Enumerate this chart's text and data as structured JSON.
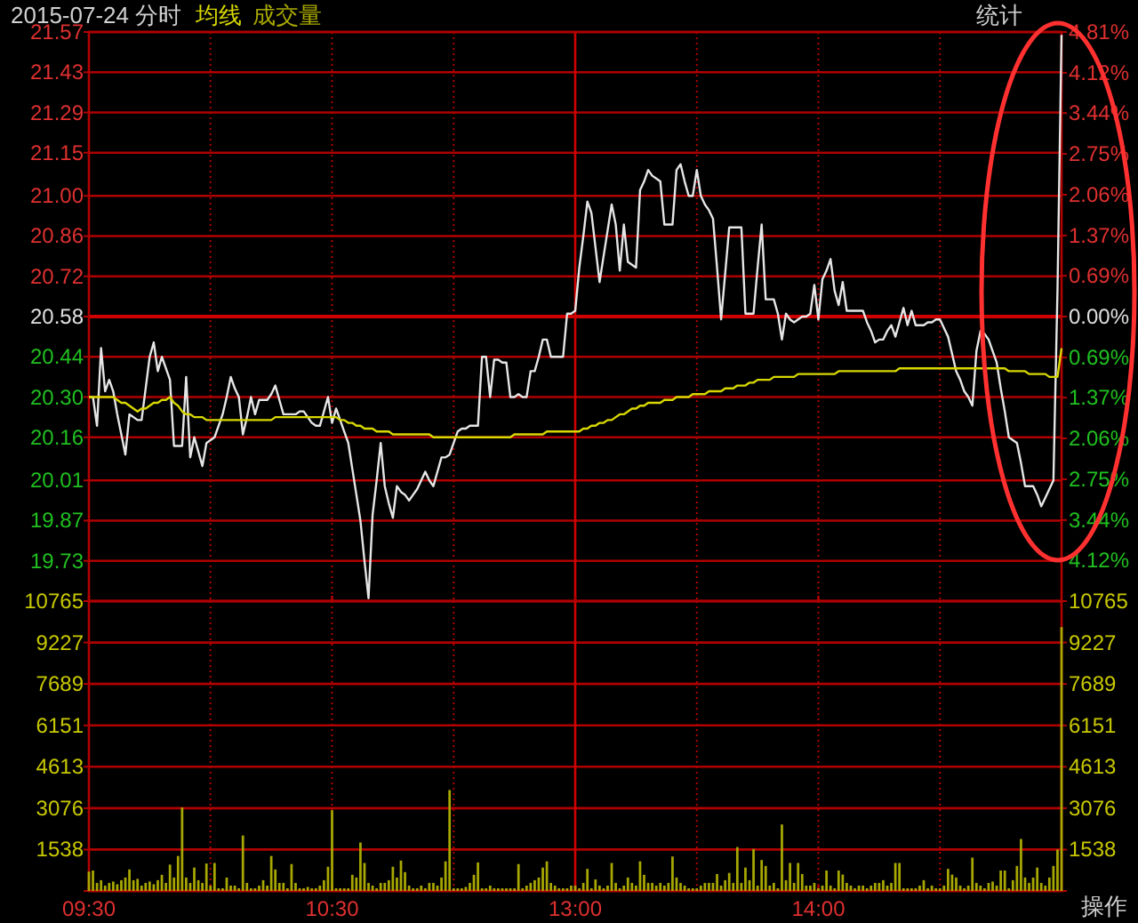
{
  "chart_data": [
    {
      "type": "line",
      "title": "2015-07-24 分时",
      "annotations": [
        "统计"
      ],
      "legend": "top left",
      "grid": true,
      "tick_labels": "y",
      "categories": [
        "09:30",
        null,
        null,
        null,
        null,
        null,
        null,
        null,
        null,
        null,
        null,
        null,
        null,
        null,
        null,
        null,
        null,
        null,
        null,
        null,
        null,
        null,
        null,
        null,
        null,
        null,
        null,
        null,
        null,
        null,
        null,
        null,
        null,
        null,
        null,
        null,
        null,
        null,
        null,
        null,
        null,
        null,
        null,
        null,
        null,
        null,
        null,
        null,
        null,
        null,
        null,
        null,
        null,
        null,
        null,
        null,
        null,
        null,
        null,
        null,
        "10:30",
        null,
        null,
        null,
        null,
        null,
        null,
        null,
        null,
        null,
        null,
        null,
        null,
        null,
        null,
        null,
        null,
        null,
        null,
        null,
        null,
        null,
        null,
        null,
        null,
        null,
        null,
        null,
        null,
        null,
        null,
        null,
        null,
        null,
        null,
        null,
        null,
        null,
        null,
        null,
        null,
        null,
        null,
        null,
        null,
        null,
        null,
        null,
        null,
        null,
        null,
        null,
        null,
        null,
        null,
        null,
        null,
        null,
        null,
        null,
        "13:00",
        null,
        null,
        null,
        null,
        null,
        null,
        null,
        null,
        null,
        null,
        null,
        null,
        null,
        null,
        null,
        null,
        null,
        null,
        null,
        null,
        null,
        null,
        null,
        null,
        null,
        null,
        null,
        null,
        null,
        null,
        null,
        null,
        null,
        null,
        null,
        null,
        null,
        null,
        null,
        null,
        null,
        null,
        null,
        null,
        null,
        null,
        null,
        null,
        null,
        null,
        null,
        null,
        null,
        null,
        null,
        null,
        null,
        null,
        null,
        "14:00",
        null,
        null,
        null,
        null,
        null,
        null,
        null,
        null,
        null,
        null,
        null,
        null,
        null,
        null,
        null,
        null,
        null,
        null,
        null,
        null,
        null,
        null,
        null,
        null,
        null,
        null,
        null,
        null,
        null,
        null,
        null,
        null,
        null,
        null,
        null,
        null,
        null,
        null,
        null,
        null,
        null,
        null,
        null,
        null,
        null,
        null,
        null,
        null,
        null,
        null,
        null,
        null,
        null,
        null,
        null,
        null,
        null,
        null,
        null,
        null
      ],
      "ylim": [
        19.59,
        21.57
      ],
      "yticks": [
        21.57,
        21.43,
        21.29,
        21.15,
        {
          "value": 21.0,
          "label": "21.00"
        },
        20.86,
        20.72,
        20.58,
        20.44,
        {
          "value": 20.3,
          "label": "20.30"
        },
        20.16,
        20.01,
        19.87,
        19.73
      ],
      "y2lim": [
        -4.81,
        4.81
      ],
      "y2ticks": [
        {
          "value": 4.81,
          "label": "4.81%"
        },
        {
          "value": 4.12,
          "label": "4.12%"
        },
        {
          "value": 3.44,
          "label": "3.44%"
        },
        {
          "value": 2.75,
          "label": "2.75%"
        },
        {
          "value": 2.06,
          "label": "2.06%"
        },
        {
          "value": 1.37,
          "label": "1.37%"
        },
        {
          "value": 0.69,
          "label": "0.69%"
        },
        {
          "value": 0,
          "label": "0.00%"
        },
        {
          "value": -0.69,
          "label": "0.69%"
        },
        {
          "value": -1.37,
          "label": "1.37%"
        },
        {
          "value": -2.06,
          "label": "2.06%"
        },
        {
          "value": -2.75,
          "label": "2.75%"
        },
        {
          "value": -3.44,
          "label": "3.44%"
        },
        {
          "value": -4.12,
          "label": "4.12%"
        }
      ],
      "ref_lines": [
        {
          "axis": "y",
          "value": 20.58
        },
        {
          "axis": "x",
          "value": "13:00"
        }
      ],
      "series": [
        {
          "color": "#e6e6e6",
          "values": [
            20.3,
            20.3,
            20.2,
            20.47,
            20.32,
            20.36,
            20.32,
            20.24,
            20.17,
            20.1,
            20.24,
            20.23,
            20.22,
            20.22,
            20.33,
            20.44,
            20.49,
            20.39,
            20.44,
            20.4,
            20.36,
            20.13,
            20.13,
            20.13,
            20.37,
            20.09,
            20.16,
            20.11,
            20.06,
            20.14,
            20.15,
            20.16,
            20.2,
            20.24,
            20.3,
            20.37,
            20.33,
            20.3,
            20.17,
            20.23,
            20.3,
            20.24,
            20.29,
            20.29,
            20.29,
            20.31,
            20.34,
            20.29,
            20.24,
            20.24,
            20.24,
            20.24,
            20.25,
            20.25,
            20.23,
            20.21,
            20.2,
            20.2,
            20.25,
            20.3,
            20.21,
            20.26,
            20.22,
            20.18,
            20.14,
            20.05,
            19.96,
            19.87,
            19.73,
            19.6,
            19.89,
            20.01,
            20.14,
            19.99,
            19.93,
            19.88,
            19.99,
            19.97,
            19.96,
            19.94,
            19.96,
            19.98,
            20.01,
            20.04,
            20.01,
            19.99,
            20.04,
            20.09,
            20.09,
            20.1,
            20.14,
            20.18,
            20.19,
            20.19,
            20.2,
            20.2,
            20.2,
            20.44,
            20.44,
            20.3,
            20.43,
            20.43,
            20.42,
            20.42,
            20.3,
            20.3,
            20.31,
            20.3,
            20.3,
            20.39,
            20.39,
            20.44,
            20.5,
            20.5,
            20.44,
            20.44,
            20.44,
            20.44,
            20.59,
            20.59,
            20.6,
            20.75,
            20.86,
            20.98,
            20.94,
            20.82,
            20.7,
            20.79,
            20.88,
            20.97,
            20.9,
            20.74,
            20.9,
            20.77,
            20.76,
            20.75,
            21.02,
            21.05,
            21.09,
            21.07,
            21.06,
            21.05,
            20.9,
            20.9,
            20.9,
            21.09,
            21.11,
            21.05,
            21.0,
            21.0,
            21.09,
            21.0,
            20.97,
            20.95,
            20.92,
            20.75,
            20.57,
            20.73,
            20.89,
            20.89,
            20.89,
            20.89,
            20.59,
            20.59,
            20.59,
            20.75,
            20.9,
            20.64,
            20.64,
            20.64,
            20.59,
            20.5,
            20.59,
            20.57,
            20.56,
            20.57,
            20.58,
            20.58,
            20.59,
            20.69,
            20.57,
            20.71,
            20.74,
            20.78,
            20.67,
            20.62,
            20.7,
            20.6,
            20.6,
            20.6,
            20.6,
            20.6,
            20.56,
            20.53,
            20.49,
            20.5,
            20.5,
            20.53,
            20.55,
            20.51,
            20.56,
            20.61,
            20.55,
            20.6,
            20.55,
            20.55,
            20.55,
            20.56,
            20.56,
            20.57,
            20.57,
            20.54,
            20.51,
            20.45,
            20.39,
            20.36,
            20.32,
            20.3,
            20.27,
            20.46,
            20.53,
            20.52,
            20.5,
            20.46,
            20.42,
            20.33,
            20.25,
            20.16,
            20.15,
            20.14,
            20.07,
            19.99,
            19.99,
            19.99,
            19.96,
            19.92,
            19.95,
            19.98,
            20.01,
            20.67,
            21.56
          ]
        },
        {
          "name": "均线",
          "color": "#d8d800",
          "values": [
            20.3,
            20.3,
            20.3,
            20.3,
            20.3,
            20.3,
            20.3,
            20.29,
            20.28,
            20.28,
            20.27,
            20.26,
            20.25,
            20.26,
            20.26,
            20.27,
            20.28,
            20.28,
            20.29,
            20.29,
            20.3,
            20.28,
            20.27,
            20.25,
            20.24,
            20.24,
            20.23,
            20.23,
            20.23,
            20.22,
            20.22,
            20.22,
            20.22,
            20.22,
            20.22,
            20.22,
            20.22,
            20.22,
            20.22,
            20.22,
            20.22,
            20.22,
            20.22,
            20.22,
            20.22,
            20.22,
            20.23,
            20.23,
            20.23,
            20.23,
            20.23,
            20.23,
            20.23,
            20.23,
            20.23,
            20.23,
            20.23,
            20.23,
            20.23,
            20.23,
            20.23,
            20.23,
            20.22,
            20.22,
            20.21,
            20.21,
            20.2,
            20.2,
            20.19,
            20.19,
            20.19,
            20.18,
            20.18,
            20.18,
            20.18,
            20.17,
            20.17,
            20.17,
            20.17,
            20.17,
            20.17,
            20.17,
            20.17,
            20.17,
            20.17,
            20.16,
            20.16,
            20.16,
            20.16,
            20.16,
            20.16,
            20.16,
            20.16,
            20.16,
            20.16,
            20.16,
            20.16,
            20.16,
            20.16,
            20.16,
            20.16,
            20.16,
            20.16,
            20.16,
            20.16,
            20.17,
            20.17,
            20.17,
            20.17,
            20.17,
            20.17,
            20.17,
            20.17,
            20.18,
            20.18,
            20.18,
            20.18,
            20.18,
            20.18,
            20.18,
            20.18,
            20.18,
            20.19,
            20.19,
            20.2,
            20.2,
            20.21,
            20.21,
            20.22,
            20.22,
            20.23,
            20.24,
            20.24,
            20.25,
            20.26,
            20.26,
            20.27,
            20.27,
            20.28,
            20.28,
            20.28,
            20.28,
            20.29,
            20.29,
            20.29,
            20.3,
            20.3,
            20.3,
            20.3,
            20.31,
            20.31,
            20.31,
            20.31,
            20.32,
            20.32,
            20.32,
            20.32,
            20.33,
            20.33,
            20.33,
            20.34,
            20.34,
            20.34,
            20.35,
            20.35,
            20.36,
            20.36,
            20.36,
            20.36,
            20.37,
            20.37,
            20.37,
            20.37,
            20.37,
            20.37,
            20.38,
            20.38,
            20.38,
            20.38,
            20.38,
            20.38,
            20.38,
            20.38,
            20.38,
            20.38,
            20.39,
            20.39,
            20.39,
            20.39,
            20.39,
            20.39,
            20.39,
            20.39,
            20.39,
            20.39,
            20.39,
            20.39,
            20.39,
            20.39,
            20.39,
            20.4,
            20.4,
            20.4,
            20.4,
            20.4,
            20.4,
            20.4,
            20.4,
            20.4,
            20.4,
            20.4,
            20.4,
            20.4,
            20.4,
            20.4,
            20.4,
            20.4,
            20.4,
            20.4,
            20.4,
            20.4,
            20.4,
            20.4,
            20.4,
            20.4,
            20.4,
            20.4,
            20.39,
            20.39,
            20.39,
            20.39,
            20.39,
            20.38,
            20.38,
            20.38,
            20.38,
            20.38,
            20.37,
            20.37,
            20.37,
            20.47
          ]
        }
      ]
    },
    {
      "type": "bar",
      "annotations": [
        "操作"
      ],
      "legend": "top left",
      "grid": true,
      "categories": [
        "09:30",
        null,
        null,
        null,
        null,
        null,
        null,
        null,
        null,
        null,
        null,
        null,
        null,
        null,
        null,
        null,
        null,
        null,
        null,
        null,
        null,
        null,
        null,
        null,
        null,
        null,
        null,
        null,
        null,
        null,
        null,
        null,
        null,
        null,
        null,
        null,
        null,
        null,
        null,
        null,
        null,
        null,
        null,
        null,
        null,
        null,
        null,
        null,
        null,
        null,
        null,
        null,
        null,
        null,
        null,
        null,
        null,
        null,
        null,
        null,
        "10:30",
        null,
        null,
        null,
        null,
        null,
        null,
        null,
        null,
        null,
        null,
        null,
        null,
        null,
        null,
        null,
        null,
        null,
        null,
        null,
        null,
        null,
        null,
        null,
        null,
        null,
        null,
        null,
        null,
        null,
        null,
        null,
        null,
        null,
        null,
        null,
        null,
        null,
        null,
        null,
        null,
        null,
        null,
        null,
        null,
        null,
        null,
        null,
        null,
        null,
        null,
        null,
        null,
        null,
        null,
        null,
        null,
        null,
        null,
        null,
        "13:00",
        null,
        null,
        null,
        null,
        null,
        null,
        null,
        null,
        null,
        null,
        null,
        null,
        null,
        null,
        null,
        null,
        null,
        null,
        null,
        null,
        null,
        null,
        null,
        null,
        null,
        null,
        null,
        null,
        null,
        null,
        null,
        null,
        null,
        null,
        null,
        null,
        null,
        null,
        null,
        null,
        null,
        null,
        null,
        null,
        null,
        null,
        null,
        null,
        null,
        null,
        null,
        null,
        null,
        null,
        null,
        null,
        null,
        null,
        null,
        "14:00",
        null,
        null,
        null,
        null,
        null,
        null,
        null,
        null,
        null,
        null,
        null,
        null,
        null,
        null,
        null,
        null,
        null,
        null,
        null,
        null,
        null,
        null,
        null,
        null,
        null,
        null,
        null,
        null,
        null,
        null,
        null,
        null,
        null,
        null,
        null,
        null,
        null,
        null,
        null,
        null,
        null,
        null,
        null,
        null,
        null,
        null,
        null,
        null,
        null,
        null,
        null,
        null,
        null,
        null,
        null,
        null,
        null,
        null,
        null,
        null
      ],
      "ylim": [
        0,
        10765
      ],
      "yticks": [
        {
          "value": 0,
          "label": null
        },
        1538,
        3076,
        4613,
        6151,
        7689,
        9227,
        10765
      ],
      "y2lim": [
        0,
        10765
      ],
      "y2ticks": [
        {
          "value": 0,
          "label": null
        },
        1538,
        3076,
        4613,
        6151,
        7689,
        9227,
        10765
      ],
      "ref_lines": [
        {
          "axis": "x",
          "value": "13:00"
        }
      ],
      "series": [
        {
          "name": "成交量",
          "color": "#a8a800",
          "values": [
            720,
            760,
            300,
            400,
            200,
            300,
            350,
            250,
            400,
            500,
            800,
            400,
            450,
            200,
            300,
            350,
            250,
            400,
            600,
            300,
            980,
            500,
            1300,
            3100,
            500,
            300,
            870,
            400,
            300,
            1020,
            200,
            1040,
            100,
            100,
            500,
            200,
            200,
            100,
            2060,
            300,
            100,
            100,
            200,
            400,
            200,
            1300,
            800,
            300,
            300,
            100,
            1000,
            300,
            100,
            100,
            150,
            100,
            100,
            200,
            400,
            900,
            3000,
            100,
            100,
            100,
            100,
            600,
            500,
            1800,
            1040,
            300,
            200,
            100,
            300,
            300,
            400,
            900,
            500,
            1130,
            700,
            200,
            100,
            100,
            200,
            100,
            300,
            300,
            200,
            500,
            1100,
            3750,
            100,
            100,
            100,
            150,
            300,
            600,
            1060,
            100,
            100,
            200,
            100,
            100,
            100,
            100,
            100,
            100,
            1000,
            100,
            200,
            300,
            400,
            500,
            870,
            1100,
            300,
            200,
            100,
            100,
            100,
            200,
            200,
            100,
            300,
            820,
            100,
            430,
            200,
            100,
            200,
            1040,
            300,
            100,
            200,
            500,
            300,
            200,
            1100,
            600,
            300,
            300,
            200,
            300,
            200,
            300,
            1280,
            500,
            300,
            200,
            100,
            100,
            100,
            200,
            300,
            300,
            300,
            630,
            200,
            400,
            670,
            300,
            1630,
            300,
            870,
            400,
            1560,
            200,
            1150,
            930,
            200,
            300,
            100,
            2470,
            400,
            1040,
            300,
            1040,
            630,
            200,
            200,
            300,
            100,
            200,
            760,
            200,
            100,
            760,
            610,
            300,
            200,
            100,
            200,
            200,
            100,
            200,
            300,
            300,
            400,
            200,
            300,
            1040,
            1040,
            100,
            100,
            100,
            100,
            200,
            400,
            100,
            200,
            100,
            100,
            200,
            820,
            610,
            500,
            200,
            100,
            200,
            1240,
            300,
            200,
            100,
            300,
            350,
            200,
            760,
            760,
            100,
            400,
            930,
            1930,
            500,
            300,
            500,
            870,
            300,
            200,
            500,
            930,
            1540,
            9800
          ]
        }
      ]
    }
  ]
}
